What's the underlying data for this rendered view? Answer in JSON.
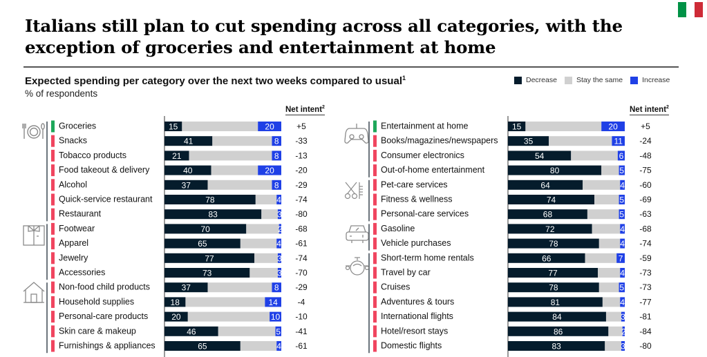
{
  "title": "Italians still plan to cut spending across all categories, with the exception of groceries and entertainment at home",
  "title_line1": "Italians still plan to cut spending across all categories, with the",
  "title_line2": "exception of groceries and entertainment at home",
  "flag": {
    "colors": [
      "#009246",
      "#ffffff",
      "#ce2b37"
    ]
  },
  "subtitle": "Expected spending per category over the next two weeks compared to usual",
  "subtitle_footnote": "1",
  "unit": "% of respondents",
  "legend": [
    {
      "label": "Decrease",
      "color": "#051c2c"
    },
    {
      "label": "Stay the same",
      "color": "#d0d0d0"
    },
    {
      "label": "Increase",
      "color": "#1f40e6"
    }
  ],
  "net_intent_header": "Net intent",
  "net_intent_footnote": "2",
  "colors": {
    "decrease": "#051c2c",
    "same": "#d0d0d0",
    "increase": "#1f40e6",
    "positive_marker": "#1ea75a",
    "negative_marker": "#f0455f",
    "group_line": "#3a4650"
  },
  "chart_data": {
    "type": "bar",
    "stacked": true,
    "orientation": "horizontal",
    "title": "Expected spending per category over the next two weeks compared to usual",
    "xlabel": "% of respondents",
    "xlim": [
      0,
      100
    ],
    "series_names": [
      "Decrease",
      "Stay the same",
      "Increase"
    ],
    "panels": [
      {
        "position": "left",
        "groups": [
          {
            "icon": "dining-icon",
            "rows": [
              {
                "category": "Groceries",
                "decrease": 15,
                "increase": 20,
                "net": "+5"
              },
              {
                "category": "Snacks",
                "decrease": 41,
                "increase": 8,
                "net": "-33"
              },
              {
                "category": "Tobacco products",
                "decrease": 21,
                "increase": 8,
                "net": "-13"
              },
              {
                "category": "Food takeout & delivery",
                "decrease": 40,
                "increase": 20,
                "net": "-20"
              },
              {
                "category": "Alcohol",
                "decrease": 37,
                "increase": 8,
                "net": "-29"
              },
              {
                "category": "Quick-service restaurant",
                "decrease": 78,
                "increase": 4,
                "net": "-74"
              },
              {
                "category": "Restaurant",
                "decrease": 83,
                "increase": 3,
                "net": "-80"
              }
            ]
          },
          {
            "icon": "shirt-icon",
            "rows": [
              {
                "category": "Footwear",
                "decrease": 70,
                "increase": 2,
                "net": "-68"
              },
              {
                "category": "Apparel",
                "decrease": 65,
                "increase": 4,
                "net": "-61"
              },
              {
                "category": "Jewelry",
                "decrease": 77,
                "increase": 3,
                "net": "-74"
              },
              {
                "category": "Accessories",
                "decrease": 73,
                "increase": 3,
                "net": "-70"
              }
            ]
          },
          {
            "icon": "house-icon",
            "rows": [
              {
                "category": "Non-food child products",
                "decrease": 37,
                "increase": 8,
                "net": "-29"
              },
              {
                "category": "Household supplies",
                "decrease": 18,
                "increase": 14,
                "net": "-4"
              },
              {
                "category": "Personal-care products",
                "decrease": 20,
                "increase": 10,
                "net": "-10"
              },
              {
                "category": "Skin care & makeup",
                "decrease": 46,
                "increase": 5,
                "net": "-41"
              },
              {
                "category": "Furnishings & appliances",
                "decrease": 65,
                "increase": 4,
                "net": "-61"
              }
            ]
          }
        ]
      },
      {
        "position": "right",
        "groups": [
          {
            "icon": "game-controller-icon",
            "rows": [
              {
                "category": "Entertainment at home",
                "decrease": 15,
                "increase": 20,
                "net": "+5"
              },
              {
                "category": "Books/magazines/newspapers",
                "decrease": 35,
                "increase": 11,
                "net": "-24"
              },
              {
                "category": "Consumer electronics",
                "decrease": 54,
                "increase": 6,
                "net": "-48"
              },
              {
                "category": "Out-of-home entertainment",
                "decrease": 80,
                "increase": 5,
                "net": "-75"
              }
            ]
          },
          {
            "icon": "scissors-comb-icon",
            "rows": [
              {
                "category": "Pet-care services",
                "decrease": 64,
                "increase": 4,
                "net": "-60"
              },
              {
                "category": "Fitness & wellness",
                "decrease": 74,
                "increase": 5,
                "net": "-69"
              },
              {
                "category": "Personal-care services",
                "decrease": 68,
                "increase": 5,
                "net": "-63"
              }
            ]
          },
          {
            "icon": "car-icon",
            "rows": [
              {
                "category": "Gasoline",
                "decrease": 72,
                "increase": 4,
                "net": "-68"
              },
              {
                "category": "Vehicle purchases",
                "decrease": 78,
                "increase": 4,
                "net": "-74"
              }
            ]
          },
          {
            "icon": "airplane-icon",
            "rows": [
              {
                "category": "Short-term home rentals",
                "decrease": 66,
                "increase": 7,
                "net": "-59"
              },
              {
                "category": "Travel by car",
                "decrease": 77,
                "increase": 4,
                "net": "-73"
              },
              {
                "category": "Cruises",
                "decrease": 78,
                "increase": 5,
                "net": "-73"
              },
              {
                "category": "Adventures & tours",
                "decrease": 81,
                "increase": 4,
                "net": "-77"
              },
              {
                "category": "International flights",
                "decrease": 84,
                "increase": 3,
                "net": "-81"
              },
              {
                "category": "Hotel/resort stays",
                "decrease": 86,
                "increase": 2,
                "net": "-84"
              },
              {
                "category": "Domestic flights",
                "decrease": 83,
                "increase": 3,
                "net": "-80"
              }
            ]
          }
        ]
      }
    ]
  }
}
